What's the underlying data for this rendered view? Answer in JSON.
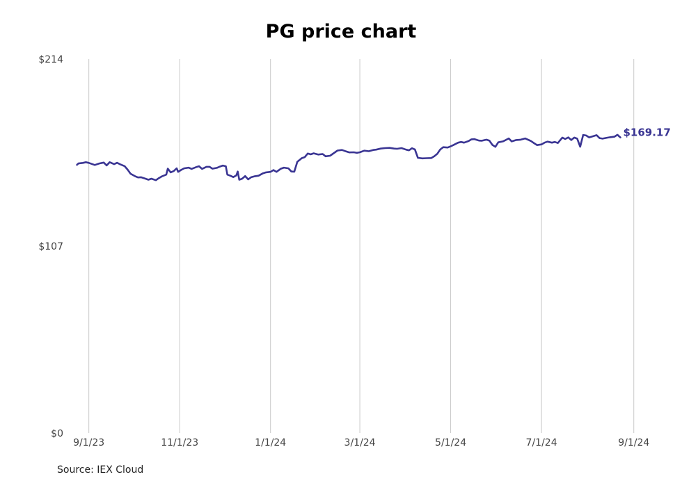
{
  "chart_data": {
    "type": "line",
    "title": "PG price chart",
    "source": "Source: IEX Cloud",
    "colors": {
      "line": "#3a3593",
      "grid": "#c8c8c8",
      "text": "#444444"
    },
    "ylim": [
      0,
      214
    ],
    "y_ticks": [
      {
        "value": 0,
        "label": "$0"
      },
      {
        "value": 107,
        "label": "$107"
      },
      {
        "value": 214,
        "label": "$214"
      }
    ],
    "xlim": [
      "2023-08-20",
      "2024-09-10"
    ],
    "x_ticks": [
      {
        "date": "2023-09-01",
        "label": "9/1/23"
      },
      {
        "date": "2023-11-01",
        "label": "11/1/23"
      },
      {
        "date": "2024-01-01",
        "label": "1/1/24"
      },
      {
        "date": "2024-03-01",
        "label": "3/1/24"
      },
      {
        "date": "2024-05-01",
        "label": "5/1/24"
      },
      {
        "date": "2024-07-01",
        "label": "7/1/24"
      },
      {
        "date": "2024-09-01",
        "label": "9/1/24"
      }
    ],
    "grid": {
      "vertical": true,
      "horizontal": false
    },
    "end_label": "$169.17",
    "series": [
      {
        "points": [
          [
            "2023-08-24",
            153.5
          ],
          [
            "2023-08-25",
            154.3
          ],
          [
            "2023-08-28",
            154.6
          ],
          [
            "2023-08-30",
            155.0
          ],
          [
            "2023-09-01",
            154.6
          ],
          [
            "2023-09-05",
            153.4
          ],
          [
            "2023-09-08",
            154.3
          ],
          [
            "2023-09-11",
            154.8
          ],
          [
            "2023-09-13",
            153.2
          ],
          [
            "2023-09-15",
            155.0
          ],
          [
            "2023-09-18",
            153.9
          ],
          [
            "2023-09-20",
            154.7
          ],
          [
            "2023-09-22",
            153.8
          ],
          [
            "2023-09-25",
            152.8
          ],
          [
            "2023-09-27",
            150.8
          ],
          [
            "2023-09-29",
            148.4
          ],
          [
            "2023-10-02",
            147.0
          ],
          [
            "2023-10-04",
            146.3
          ],
          [
            "2023-10-06",
            146.4
          ],
          [
            "2023-10-09",
            145.6
          ],
          [
            "2023-10-11",
            145.0
          ],
          [
            "2023-10-13",
            145.6
          ],
          [
            "2023-10-16",
            144.7
          ],
          [
            "2023-10-18",
            145.9
          ],
          [
            "2023-10-20",
            146.9
          ],
          [
            "2023-10-23",
            147.9
          ],
          [
            "2023-10-24",
            151.3
          ],
          [
            "2023-10-26",
            149.2
          ],
          [
            "2023-10-28",
            149.9
          ],
          [
            "2023-10-30",
            151.5
          ],
          [
            "2023-10-31",
            149.5
          ],
          [
            "2023-11-02",
            150.6
          ],
          [
            "2023-11-04",
            151.5
          ],
          [
            "2023-11-07",
            151.9
          ],
          [
            "2023-11-09",
            151.2
          ],
          [
            "2023-11-12",
            152.2
          ],
          [
            "2023-11-14",
            152.7
          ],
          [
            "2023-11-16",
            151.2
          ],
          [
            "2023-11-19",
            152.4
          ],
          [
            "2023-11-21",
            152.4
          ],
          [
            "2023-11-23",
            151.3
          ],
          [
            "2023-11-26",
            151.8
          ],
          [
            "2023-11-28",
            152.5
          ],
          [
            "2023-11-30",
            153.1
          ],
          [
            "2023-12-02",
            152.7
          ],
          [
            "2023-12-03",
            147.9
          ],
          [
            "2023-12-05",
            147.3
          ],
          [
            "2023-12-07",
            146.5
          ],
          [
            "2023-12-09",
            147.4
          ],
          [
            "2023-12-10",
            149.7
          ],
          [
            "2023-12-11",
            145.0
          ],
          [
            "2023-12-13",
            145.6
          ],
          [
            "2023-12-15",
            147.1
          ],
          [
            "2023-12-17",
            145.2
          ],
          [
            "2023-12-19",
            146.4
          ],
          [
            "2023-12-21",
            146.9
          ],
          [
            "2023-12-24",
            147.3
          ],
          [
            "2023-12-27",
            148.7
          ],
          [
            "2023-12-29",
            149.2
          ],
          [
            "2024-01-01",
            149.5
          ],
          [
            "2024-01-03",
            150.5
          ],
          [
            "2024-01-05",
            149.5
          ],
          [
            "2024-01-08",
            151.3
          ],
          [
            "2024-01-10",
            151.9
          ],
          [
            "2024-01-13",
            151.5
          ],
          [
            "2024-01-15",
            149.7
          ],
          [
            "2024-01-17",
            149.6
          ],
          [
            "2024-01-19",
            155.2
          ],
          [
            "2024-01-22",
            157.3
          ],
          [
            "2024-01-24",
            157.9
          ],
          [
            "2024-01-26",
            160.0
          ],
          [
            "2024-01-28",
            159.5
          ],
          [
            "2024-01-30",
            160.1
          ],
          [
            "2024-02-02",
            159.4
          ],
          [
            "2024-02-05",
            159.7
          ],
          [
            "2024-02-07",
            158.4
          ],
          [
            "2024-02-10",
            158.7
          ],
          [
            "2024-02-12",
            159.9
          ],
          [
            "2024-02-15",
            161.7
          ],
          [
            "2024-02-18",
            162.0
          ],
          [
            "2024-02-20",
            161.4
          ],
          [
            "2024-02-23",
            160.6
          ],
          [
            "2024-02-26",
            160.7
          ],
          [
            "2024-02-28",
            160.4
          ],
          [
            "2024-03-01",
            160.7
          ],
          [
            "2024-03-04",
            161.6
          ],
          [
            "2024-03-07",
            161.3
          ],
          [
            "2024-03-10",
            162.0
          ],
          [
            "2024-03-12",
            162.2
          ],
          [
            "2024-03-15",
            162.8
          ],
          [
            "2024-03-18",
            163.1
          ],
          [
            "2024-03-21",
            163.2
          ],
          [
            "2024-03-24",
            162.8
          ],
          [
            "2024-03-26",
            162.7
          ],
          [
            "2024-03-29",
            163.1
          ],
          [
            "2024-04-01",
            162.2
          ],
          [
            "2024-04-03",
            161.8
          ],
          [
            "2024-04-05",
            163.0
          ],
          [
            "2024-04-07",
            162.3
          ],
          [
            "2024-04-09",
            157.5
          ],
          [
            "2024-04-12",
            157.2
          ],
          [
            "2024-04-15",
            157.3
          ],
          [
            "2024-04-18",
            157.4
          ],
          [
            "2024-04-20",
            158.4
          ],
          [
            "2024-04-22",
            159.8
          ],
          [
            "2024-04-24",
            162.3
          ],
          [
            "2024-04-26",
            163.6
          ],
          [
            "2024-04-29",
            163.4
          ],
          [
            "2024-05-01",
            164.1
          ],
          [
            "2024-05-03",
            164.9
          ],
          [
            "2024-05-06",
            166.2
          ],
          [
            "2024-05-08",
            166.6
          ],
          [
            "2024-05-10",
            166.2
          ],
          [
            "2024-05-13",
            167.1
          ],
          [
            "2024-05-15",
            168.1
          ],
          [
            "2024-05-17",
            168.2
          ],
          [
            "2024-05-20",
            167.4
          ],
          [
            "2024-05-22",
            167.3
          ],
          [
            "2024-05-25",
            167.9
          ],
          [
            "2024-05-27",
            167.4
          ],
          [
            "2024-05-29",
            164.9
          ],
          [
            "2024-05-31",
            163.8
          ],
          [
            "2024-06-02",
            166.4
          ],
          [
            "2024-06-05",
            166.9
          ],
          [
            "2024-06-07",
            167.7
          ],
          [
            "2024-06-09",
            168.6
          ],
          [
            "2024-06-11",
            166.9
          ],
          [
            "2024-06-14",
            167.7
          ],
          [
            "2024-06-17",
            167.9
          ],
          [
            "2024-06-20",
            168.6
          ],
          [
            "2024-06-24",
            167.1
          ],
          [
            "2024-06-26",
            165.9
          ],
          [
            "2024-06-28",
            164.8
          ],
          [
            "2024-07-01",
            165.2
          ],
          [
            "2024-07-03",
            166.2
          ],
          [
            "2024-07-05",
            166.8
          ],
          [
            "2024-07-08",
            166.2
          ],
          [
            "2024-07-10",
            166.6
          ],
          [
            "2024-07-12",
            166.0
          ],
          [
            "2024-07-15",
            169.1
          ],
          [
            "2024-07-17",
            168.3
          ],
          [
            "2024-07-19",
            169.2
          ],
          [
            "2024-07-21",
            167.7
          ],
          [
            "2024-07-23",
            169.1
          ],
          [
            "2024-07-25",
            168.5
          ],
          [
            "2024-07-27",
            163.9
          ],
          [
            "2024-07-29",
            170.6
          ],
          [
            "2024-07-31",
            170.3
          ],
          [
            "2024-08-02",
            169.2
          ],
          [
            "2024-08-04",
            169.7
          ],
          [
            "2024-08-07",
            170.5
          ],
          [
            "2024-08-09",
            168.8
          ],
          [
            "2024-08-11",
            168.5
          ],
          [
            "2024-08-14",
            169.0
          ],
          [
            "2024-08-16",
            169.3
          ],
          [
            "2024-08-19",
            169.6
          ],
          [
            "2024-08-21",
            170.7
          ],
          [
            "2024-08-23",
            169.17
          ]
        ]
      }
    ]
  }
}
